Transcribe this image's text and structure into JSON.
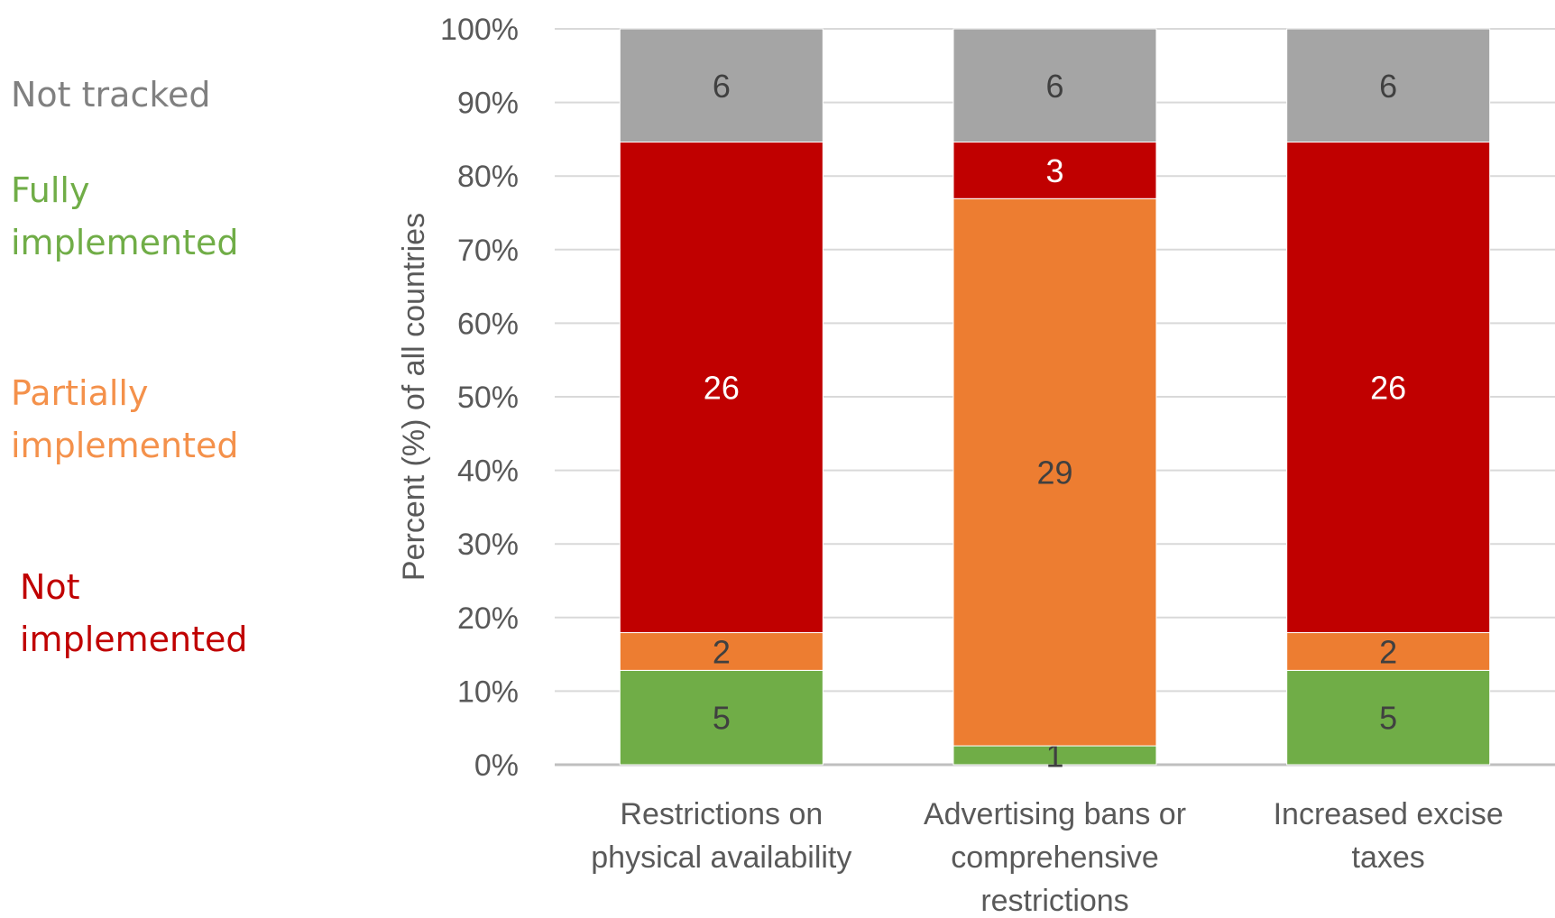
{
  "chart_data": {
    "type": "bar",
    "stacked": true,
    "categories": [
      "Restrictions on physical availability",
      "Advertising bans or comprehensive restrictions",
      "Increased excise taxes"
    ],
    "category_lines": [
      [
        "Restrictions on",
        "physical availability"
      ],
      [
        "Advertising bans or",
        "comprehensive",
        "restrictions"
      ],
      [
        "Increased excise",
        "taxes"
      ]
    ],
    "series": [
      {
        "name": "Fully implemented",
        "color": "#70AD47",
        "label_color": "#404040",
        "values": [
          5,
          1,
          5
        ]
      },
      {
        "name": "Partially implemented",
        "color": "#ED7D31",
        "label_color": "#404040",
        "values": [
          2,
          29,
          2
        ]
      },
      {
        "name": "Not implemented",
        "color": "#C00000",
        "label_color": "#ffffff",
        "values": [
          26,
          3,
          26
        ]
      },
      {
        "name": "Not tracked",
        "color": "#A5A5A5",
        "label_color": "#404040",
        "values": [
          6,
          6,
          6
        ]
      }
    ],
    "ylabel": "Percent (%) of all countries",
    "yticks": [
      "0%",
      "10%",
      "20%",
      "30%",
      "40%",
      "50%",
      "60%",
      "70%",
      "80%",
      "90%",
      "100%"
    ],
    "ylim": [
      0,
      100
    ],
    "grid": true,
    "legend_position": "left"
  },
  "legend": [
    {
      "text": "Not tracked",
      "color": "#808080"
    },
    {
      "text": "Fully\nimplemented",
      "color": "#70AD47"
    },
    {
      "text": "Partially\nimplemented",
      "color": "#F4914B"
    },
    {
      "text": "Not\nimplemented",
      "color": "#C00000"
    }
  ]
}
